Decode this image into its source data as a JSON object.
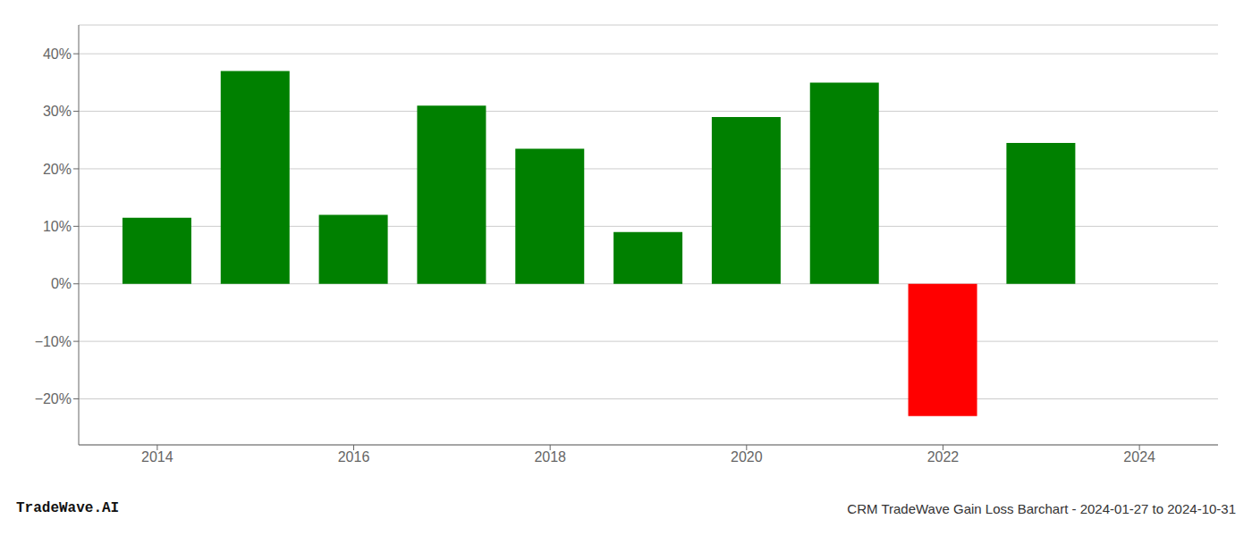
{
  "chart_data": {
    "type": "bar",
    "title": "CRM TradeWave Gain Loss Barchart - 2024-01-27 to 2024-10-31",
    "annotations": [
      "TradeWave.AI"
    ],
    "x": [
      2014,
      2015,
      2016,
      2017,
      2018,
      2019,
      2020,
      2021,
      2022,
      2023
    ],
    "values": [
      11.5,
      37.0,
      12.0,
      31.0,
      23.5,
      9.0,
      29.0,
      35.0,
      -23.0,
      24.5
    ],
    "colors": [
      "#008000",
      "#008000",
      "#008000",
      "#008000",
      "#008000",
      "#008000",
      "#008000",
      "#008000",
      "#ff0000",
      "#008000"
    ],
    "xlim": [
      2013.2,
      2024.8
    ],
    "xticks": [
      2014,
      2016,
      2018,
      2020,
      2022,
      2024
    ],
    "ylim": [
      -28,
      45
    ],
    "yticks": [
      {
        "value": -20,
        "label": "−20%"
      },
      {
        "value": -10,
        "label": "−10%"
      },
      {
        "value": 0,
        "label": "0%"
      },
      {
        "value": 10,
        "label": "10%"
      },
      {
        "value": 20,
        "label": "20%"
      },
      {
        "value": 30,
        "label": "30%"
      },
      {
        "value": 40,
        "label": "40%"
      }
    ],
    "grid": true
  }
}
